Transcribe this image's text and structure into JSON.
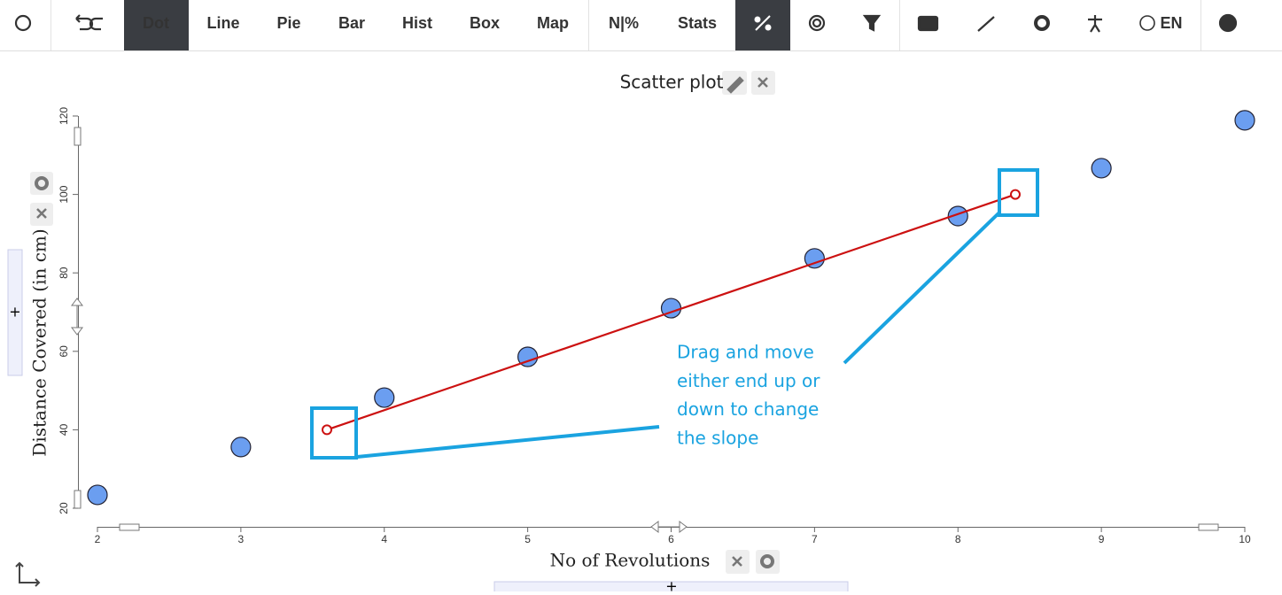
{
  "toolbar": {
    "items": [
      "Dot",
      "Line",
      "Pie",
      "Bar",
      "Hist",
      "Box",
      "Map",
      "N|%",
      "Stats"
    ],
    "language": "EN"
  },
  "drop_zones": [
    "+",
    "+"
  ],
  "chart_data": {
    "type": "scatter",
    "title": "Scatter plot",
    "x_label": "No of Revolutions",
    "y_label": "Distance Covered (in cm)",
    "x": [
      2,
      3,
      4,
      5,
      6,
      7,
      8,
      9,
      10
    ],
    "values": [
      23.4,
      35.6,
      48.2,
      58.6,
      71,
      83.7,
      94.5,
      106.7,
      118.9
    ],
    "color": "#6b9ef0",
    "xlim": [
      2,
      10
    ],
    "ylim": [
      20,
      120
    ],
    "xticks": [
      2,
      3,
      4,
      5,
      6,
      7,
      8,
      9,
      10
    ],
    "yticks": [
      20,
      40,
      60,
      80,
      100,
      120
    ],
    "trend_line": {
      "x": [
        3.6,
        8.4
      ],
      "y": [
        40,
        100
      ],
      "color": "#cc1111"
    },
    "annotation": [
      "Drag and move",
      "either end up or",
      "down to change",
      "the slope"
    ]
  }
}
